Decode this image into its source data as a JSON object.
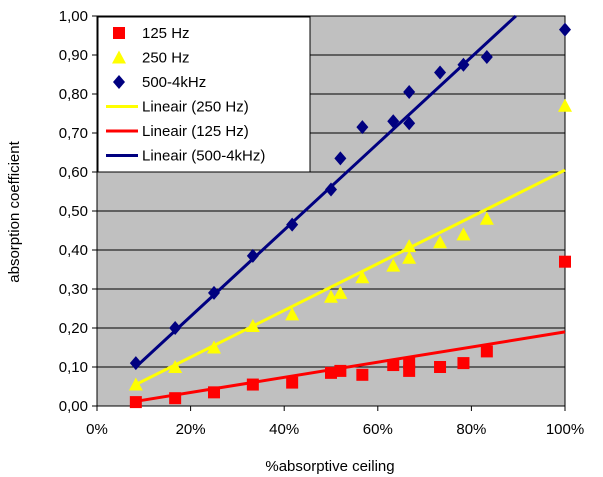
{
  "chart_data": {
    "type": "scatter",
    "title": "",
    "xlabel": "%absorptive ceiling",
    "ylabel": "absorption coefficient",
    "xlim": [
      0,
      100
    ],
    "ylim": [
      0,
      1.0
    ],
    "x_ticks": [
      "0%",
      "20%",
      "40%",
      "60%",
      "80%",
      "100%"
    ],
    "x_tick_values": [
      0,
      20,
      40,
      60,
      80,
      100
    ],
    "y_ticks": [
      "0,00",
      "0,10",
      "0,20",
      "0,30",
      "0,40",
      "0,50",
      "0,60",
      "0,70",
      "0,80",
      "0,90",
      "1,00"
    ],
    "y_tick_values": [
      0,
      0.1,
      0.2,
      0.3,
      0.4,
      0.5,
      0.6,
      0.7,
      0.8,
      0.9,
      1.0
    ],
    "grid": true,
    "plot_background": "#c0c0c0",
    "legend_position": "top-left",
    "series": [
      {
        "name": "125 Hz",
        "marker": "square",
        "color": "#ff0000",
        "points": [
          [
            8.3,
            0.01
          ],
          [
            16.7,
            0.02
          ],
          [
            25,
            0.035
          ],
          [
            33.3,
            0.055
          ],
          [
            41.7,
            0.06
          ],
          [
            50,
            0.085
          ],
          [
            52,
            0.09
          ],
          [
            56.7,
            0.08
          ],
          [
            63.3,
            0.105
          ],
          [
            66.7,
            0.09
          ],
          [
            66.7,
            0.11
          ],
          [
            73.3,
            0.1
          ],
          [
            78.3,
            0.11
          ],
          [
            83.3,
            0.14
          ],
          [
            100,
            0.37
          ]
        ]
      },
      {
        "name": "250 Hz",
        "marker": "triangle",
        "color": "#ffff00",
        "points": [
          [
            8.3,
            0.055
          ],
          [
            16.7,
            0.1
          ],
          [
            25,
            0.15
          ],
          [
            33.3,
            0.205
          ],
          [
            41.7,
            0.235
          ],
          [
            50,
            0.28
          ],
          [
            52,
            0.29
          ],
          [
            56.7,
            0.33
          ],
          [
            63.3,
            0.36
          ],
          [
            66.7,
            0.38
          ],
          [
            66.7,
            0.41
          ],
          [
            73.3,
            0.42
          ],
          [
            78.3,
            0.44
          ],
          [
            83.3,
            0.48
          ],
          [
            100,
            0.77
          ]
        ]
      },
      {
        "name": "500-4kHz",
        "marker": "diamond",
        "color": "#000080",
        "points": [
          [
            8.3,
            0.11
          ],
          [
            16.7,
            0.2
          ],
          [
            25,
            0.29
          ],
          [
            33.3,
            0.385
          ],
          [
            41.7,
            0.465
          ],
          [
            50,
            0.555
          ],
          [
            52,
            0.635
          ],
          [
            56.7,
            0.715
          ],
          [
            63.3,
            0.73
          ],
          [
            66.7,
            0.725
          ],
          [
            66.7,
            0.805
          ],
          [
            73.3,
            0.855
          ],
          [
            78.3,
            0.875
          ],
          [
            83.3,
            0.895
          ],
          [
            100,
            0.965
          ]
        ]
      }
    ],
    "trendlines": [
      {
        "name": "Lineair (250 Hz)",
        "color": "#ffff00",
        "x": [
          8.3,
          100
        ],
        "y": [
          0.055,
          0.605
        ]
      },
      {
        "name": "Lineair (125 Hz)",
        "color": "#ff0000",
        "x": [
          8.3,
          100
        ],
        "y": [
          0.012,
          0.19
        ]
      },
      {
        "name": "Lineair (500-4kHz)",
        "color": "#000080",
        "x": [
          8.3,
          89.5
        ],
        "y": [
          0.1,
          1.0
        ]
      }
    ]
  }
}
